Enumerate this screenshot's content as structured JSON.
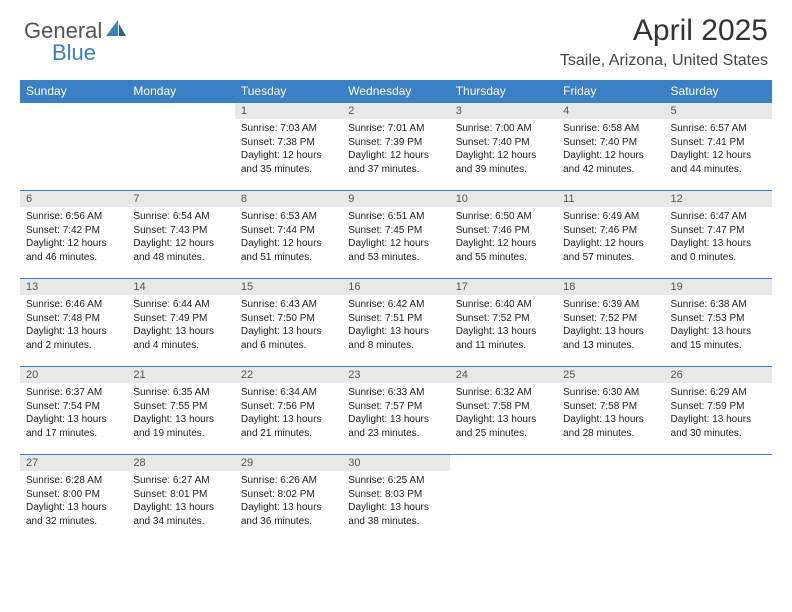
{
  "logo": {
    "text1": "General",
    "text2": "Blue"
  },
  "title": "April 2025",
  "subtitle": "Tsaile, Arizona, United States",
  "colors": {
    "header_bg": "#3b7fc4",
    "header_text": "#ffffff",
    "daynum_bg": "#e8e8e8",
    "daynum_text": "#555555",
    "body_text": "#222222",
    "row_border": "#3b7fc4",
    "background": "#ffffff"
  },
  "fonts": {
    "title_size": 30,
    "subtitle_size": 16,
    "dayheader_size": 12,
    "daynum_size": 11,
    "daycontent_size": 10
  },
  "day_names": [
    "Sunday",
    "Monday",
    "Tuesday",
    "Wednesday",
    "Thursday",
    "Friday",
    "Saturday"
  ],
  "weeks": [
    [
      null,
      null,
      {
        "n": "1",
        "sr": "7:03 AM",
        "ss": "7:38 PM",
        "dl": "12 hours and 35 minutes."
      },
      {
        "n": "2",
        "sr": "7:01 AM",
        "ss": "7:39 PM",
        "dl": "12 hours and 37 minutes."
      },
      {
        "n": "3",
        "sr": "7:00 AM",
        "ss": "7:40 PM",
        "dl": "12 hours and 39 minutes."
      },
      {
        "n": "4",
        "sr": "6:58 AM",
        "ss": "7:40 PM",
        "dl": "12 hours and 42 minutes."
      },
      {
        "n": "5",
        "sr": "6:57 AM",
        "ss": "7:41 PM",
        "dl": "12 hours and 44 minutes."
      }
    ],
    [
      {
        "n": "6",
        "sr": "6:56 AM",
        "ss": "7:42 PM",
        "dl": "12 hours and 46 minutes."
      },
      {
        "n": "7",
        "sr": "6:54 AM",
        "ss": "7:43 PM",
        "dl": "12 hours and 48 minutes."
      },
      {
        "n": "8",
        "sr": "6:53 AM",
        "ss": "7:44 PM",
        "dl": "12 hours and 51 minutes."
      },
      {
        "n": "9",
        "sr": "6:51 AM",
        "ss": "7:45 PM",
        "dl": "12 hours and 53 minutes."
      },
      {
        "n": "10",
        "sr": "6:50 AM",
        "ss": "7:46 PM",
        "dl": "12 hours and 55 minutes."
      },
      {
        "n": "11",
        "sr": "6:49 AM",
        "ss": "7:46 PM",
        "dl": "12 hours and 57 minutes."
      },
      {
        "n": "12",
        "sr": "6:47 AM",
        "ss": "7:47 PM",
        "dl": "13 hours and 0 minutes."
      }
    ],
    [
      {
        "n": "13",
        "sr": "6:46 AM",
        "ss": "7:48 PM",
        "dl": "13 hours and 2 minutes."
      },
      {
        "n": "14",
        "sr": "6:44 AM",
        "ss": "7:49 PM",
        "dl": "13 hours and 4 minutes."
      },
      {
        "n": "15",
        "sr": "6:43 AM",
        "ss": "7:50 PM",
        "dl": "13 hours and 6 minutes."
      },
      {
        "n": "16",
        "sr": "6:42 AM",
        "ss": "7:51 PM",
        "dl": "13 hours and 8 minutes."
      },
      {
        "n": "17",
        "sr": "6:40 AM",
        "ss": "7:52 PM",
        "dl": "13 hours and 11 minutes."
      },
      {
        "n": "18",
        "sr": "6:39 AM",
        "ss": "7:52 PM",
        "dl": "13 hours and 13 minutes."
      },
      {
        "n": "19",
        "sr": "6:38 AM",
        "ss": "7:53 PM",
        "dl": "13 hours and 15 minutes."
      }
    ],
    [
      {
        "n": "20",
        "sr": "6:37 AM",
        "ss": "7:54 PM",
        "dl": "13 hours and 17 minutes."
      },
      {
        "n": "21",
        "sr": "6:35 AM",
        "ss": "7:55 PM",
        "dl": "13 hours and 19 minutes."
      },
      {
        "n": "22",
        "sr": "6:34 AM",
        "ss": "7:56 PM",
        "dl": "13 hours and 21 minutes."
      },
      {
        "n": "23",
        "sr": "6:33 AM",
        "ss": "7:57 PM",
        "dl": "13 hours and 23 minutes."
      },
      {
        "n": "24",
        "sr": "6:32 AM",
        "ss": "7:58 PM",
        "dl": "13 hours and 25 minutes."
      },
      {
        "n": "25",
        "sr": "6:30 AM",
        "ss": "7:58 PM",
        "dl": "13 hours and 28 minutes."
      },
      {
        "n": "26",
        "sr": "6:29 AM",
        "ss": "7:59 PM",
        "dl": "13 hours and 30 minutes."
      }
    ],
    [
      {
        "n": "27",
        "sr": "6:28 AM",
        "ss": "8:00 PM",
        "dl": "13 hours and 32 minutes."
      },
      {
        "n": "28",
        "sr": "6:27 AM",
        "ss": "8:01 PM",
        "dl": "13 hours and 34 minutes."
      },
      {
        "n": "29",
        "sr": "6:26 AM",
        "ss": "8:02 PM",
        "dl": "13 hours and 36 minutes."
      },
      {
        "n": "30",
        "sr": "6:25 AM",
        "ss": "8:03 PM",
        "dl": "13 hours and 38 minutes."
      },
      null,
      null,
      null
    ]
  ]
}
